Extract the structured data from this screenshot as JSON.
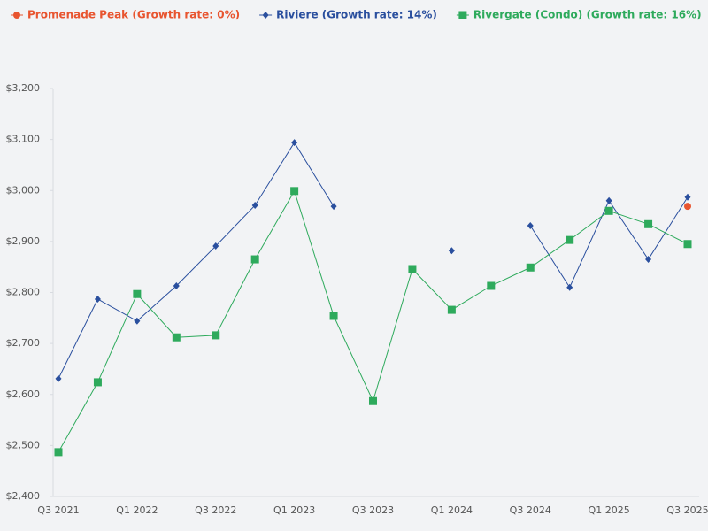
{
  "chart_data": {
    "type": "line",
    "categories": [
      "Q3 2021",
      null,
      "Q1 2022",
      null,
      "Q3 2022",
      null,
      "Q1 2023",
      null,
      "Q3 2023",
      null,
      "Q1 2024",
      null,
      "Q3 2024",
      null,
      "Q1 2025",
      null,
      "Q3 2025"
    ],
    "series": [
      {
        "name": "Promenade Peak (Growth rate: 0%)",
        "color": "#e8542f",
        "marker": "circle",
        "values": [
          null,
          null,
          null,
          null,
          null,
          null,
          null,
          null,
          null,
          null,
          null,
          null,
          null,
          null,
          null,
          null,
          2969
        ]
      },
      {
        "name": "Riviere (Growth rate: 14%)",
        "color": "#2a4f9e",
        "marker": "diamond",
        "values": [
          2631,
          2787,
          2744,
          2813,
          2891,
          2971,
          3094,
          2969,
          null,
          null,
          2882,
          null,
          2931,
          2810,
          2980,
          2865,
          2987
        ]
      },
      {
        "name": "Rivergate (Condo) (Growth rate: 16%)",
        "color": "#2eaa5c",
        "marker": "square",
        "values": [
          2487,
          2624,
          2797,
          2712,
          2716,
          2865,
          2999,
          2754,
          2587,
          2846,
          2766,
          2813,
          2849,
          2903,
          2960,
          2934,
          2895
        ]
      }
    ],
    "ylim": [
      2400,
      3200
    ],
    "yticks": [
      {
        "value": 2400,
        "label": "$2,400"
      },
      {
        "value": 2500,
        "label": "$2,500"
      },
      {
        "value": 2600,
        "label": "$2,600"
      },
      {
        "value": 2700,
        "label": "$2,700"
      },
      {
        "value": 2800,
        "label": "$2,800"
      },
      {
        "value": 2900,
        "label": "$2,900"
      },
      {
        "value": 3000,
        "label": "$3,000"
      },
      {
        "value": 3100,
        "label": "$3,100"
      },
      {
        "value": 3200,
        "label": "$3,200"
      }
    ],
    "legend": "top-left"
  }
}
